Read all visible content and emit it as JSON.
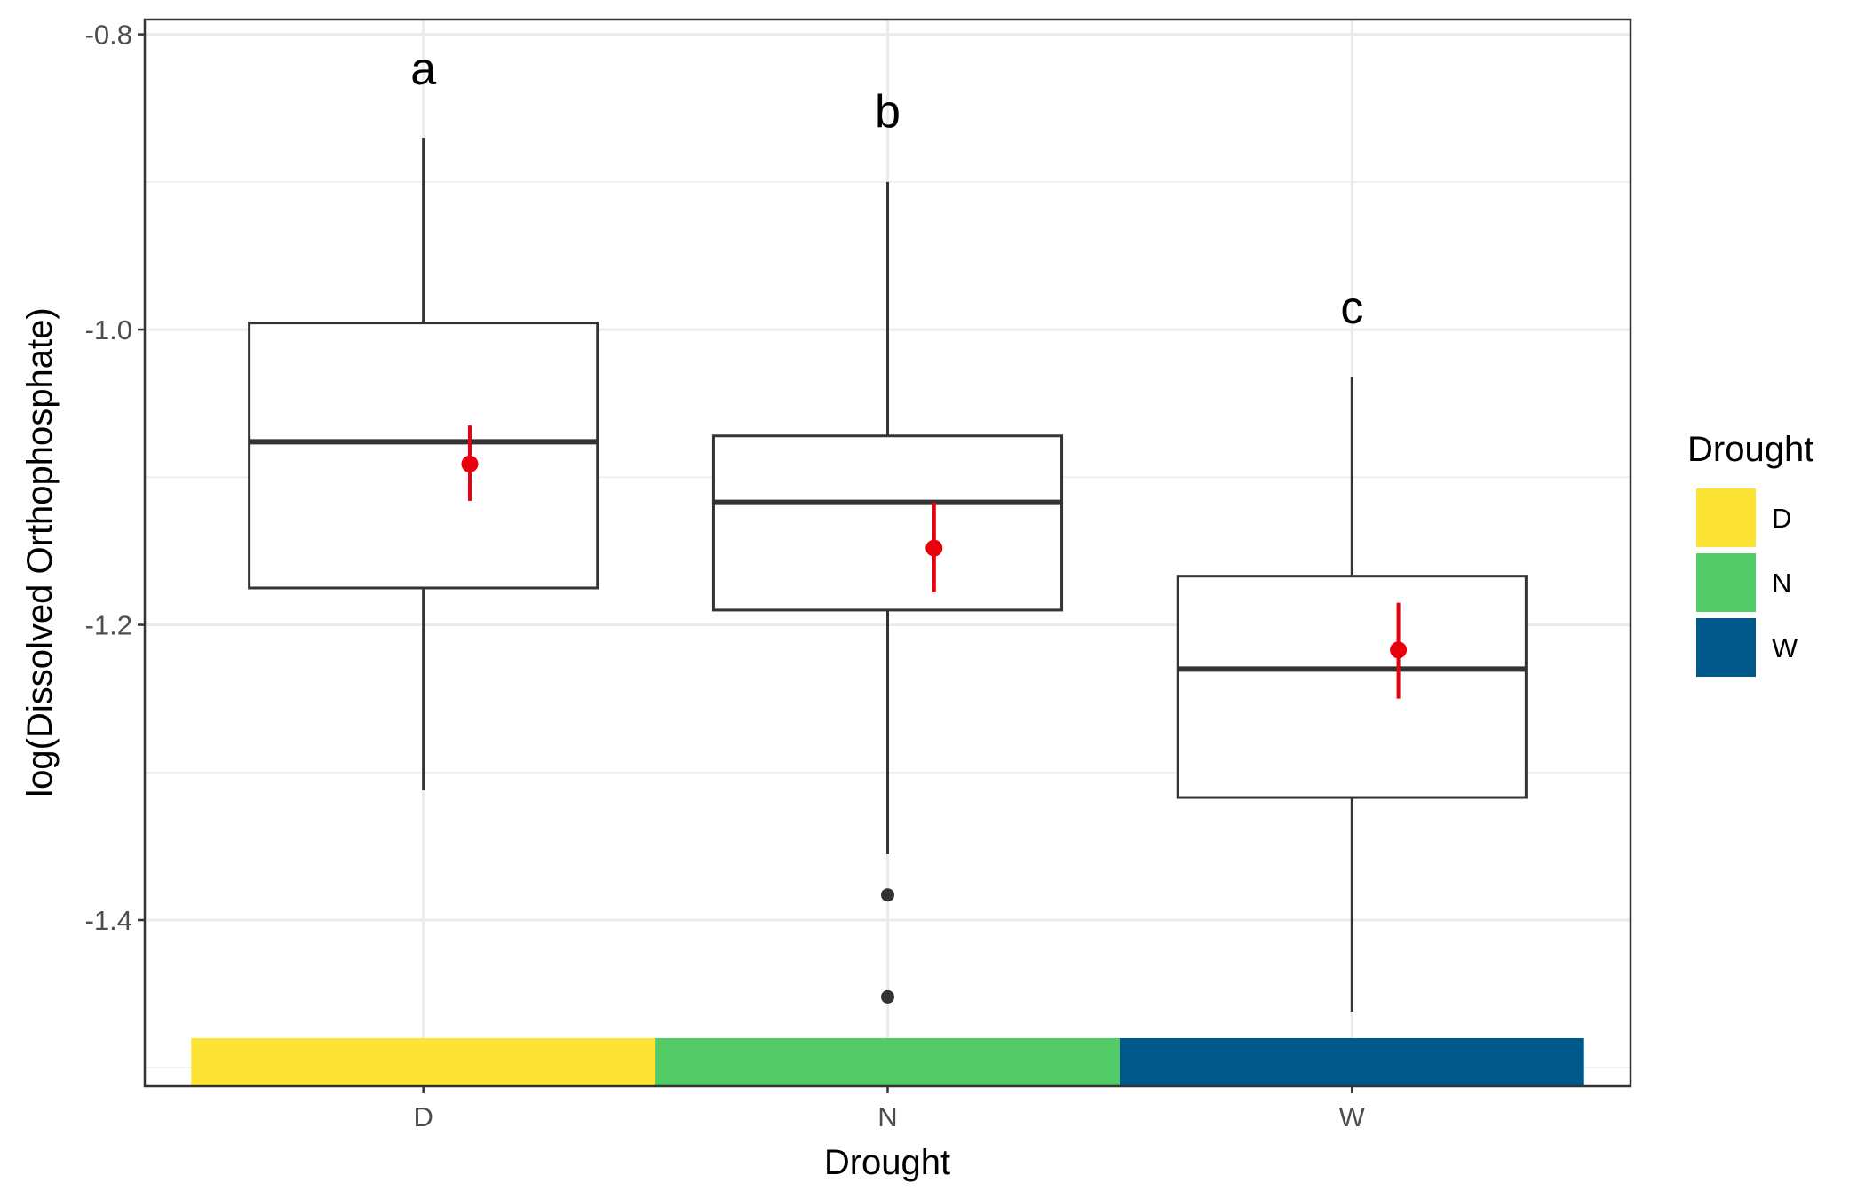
{
  "chart_data": {
    "type": "boxplot",
    "xlabel": "Drought",
    "ylabel": "log(Dissolved Orthophosphate)",
    "ylim": [
      -1.5125,
      -0.79
    ],
    "yticks": [
      -0.8,
      -1.0,
      -1.2,
      -1.4
    ],
    "ytick_labels": [
      "-0.8",
      "-1.0",
      "-1.2",
      "-1.4"
    ],
    "categories": [
      "D",
      "N",
      "W"
    ],
    "grid": true,
    "boxes": [
      {
        "category": "D",
        "whisker_low": -1.312,
        "q1": -1.175,
        "median": -1.076,
        "q3": -0.9955,
        "whisker_high": -0.87,
        "outliers": [],
        "mean": -1.091,
        "mean_low": -1.116,
        "mean_high": -1.065,
        "letter": "a",
        "letter_y": -0.823
      },
      {
        "category": "N",
        "whisker_low": -1.355,
        "q1": -1.19,
        "median": -1.117,
        "q3": -1.072,
        "whisker_high": -0.9,
        "outliers": [
          -1.383,
          -1.452
        ],
        "mean": -1.148,
        "mean_low": -1.178,
        "mean_high": -1.117,
        "letter": "b",
        "letter_y": -0.852
      },
      {
        "category": "W",
        "whisker_low": -1.462,
        "q1": -1.317,
        "median": -1.23,
        "q3": -1.167,
        "whisker_high": -1.032,
        "outliers": [],
        "mean": -1.217,
        "mean_low": -1.25,
        "mean_high": -1.185,
        "letter": "c",
        "letter_y": -0.985
      }
    ],
    "color_bar": {
      "y_top": -1.48,
      "y_bottom": -1.5125
    },
    "legend": {
      "title": "Drought",
      "position": "right",
      "entries": [
        {
          "label": "D",
          "color": "#FDE333"
        },
        {
          "label": "N",
          "color": "#53CC67"
        },
        {
          "label": "W",
          "color": "#00588B"
        }
      ]
    },
    "mean_color": "#E8000B"
  }
}
